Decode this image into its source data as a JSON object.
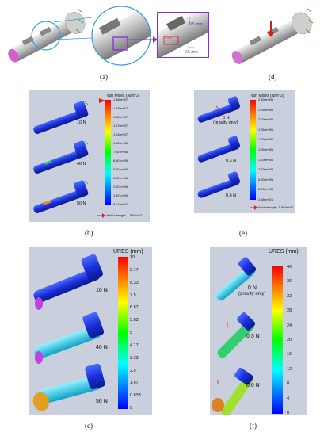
{
  "panels": {
    "a": {
      "label": "(a)",
      "dim_vertical": "0.5 mm",
      "dim_horizontal": "0.5 mm",
      "small_label": "5 mm"
    },
    "b": {
      "label": "(b)",
      "colorbar_title": "von Mises (N/m^2)",
      "ticks": [
        "1.560e+07",
        "1.430e+07",
        "1.300e+07",
        "1.170e+07",
        "1.040e+07",
        "9.100e+06",
        "7.801e+06",
        "6.501e+06",
        "5.201e+06",
        "3.901e+06",
        "2.601e+06",
        "1.301e+06",
        "9.018e+02"
      ],
      "forces": [
        "10 N",
        "40 N",
        "50 N"
      ],
      "yield_text": "Yield strength: 1.560e+07"
    },
    "c": {
      "label": "(c)",
      "colorbar_title": "URES (mm)",
      "ticks": [
        "10",
        "9.17",
        "8.33",
        "7.5",
        "6.67",
        "5.83",
        "5",
        "4.17",
        "3.33",
        "2.5",
        "1.67",
        "0.833",
        "0"
      ],
      "forces": [
        "10 N",
        "40 N",
        "50 N"
      ]
    },
    "d": {
      "label": "(d)"
    },
    "e": {
      "label": "(e)",
      "colorbar_title": "von Mises (N/m^2)",
      "ticks": [
        "2.500e+06",
        "2.250e+06",
        "2.000e+06",
        "1.750e+06",
        "1.500e+06",
        "1.250e+06",
        "1.000e+06",
        "7.500e+05",
        "5.000e+05",
        "2.500e+05",
        "2.566e+01"
      ],
      "forces": [
        "0 N",
        "(gravity only)",
        "0.3 N",
        "0.6 N"
      ],
      "yield_text": "Yield strength: 1.560e+07"
    },
    "f": {
      "label": "(f)",
      "colorbar_title": "URES (mm)",
      "ticks": [
        "40",
        "36",
        "32",
        "28",
        "24",
        "20",
        "16",
        "12",
        "8",
        "4",
        "0"
      ],
      "forces": [
        "0 N",
        "(gravity only)",
        "0.3 N",
        "0.6 N"
      ]
    }
  },
  "colors": {
    "panel_bg": "#c9cfdc",
    "model_blue": "#1230d8",
    "highlight_purple": "#8a2be2",
    "circle_blue": "#3aa0d8",
    "yield_arrow": "#e01818"
  }
}
